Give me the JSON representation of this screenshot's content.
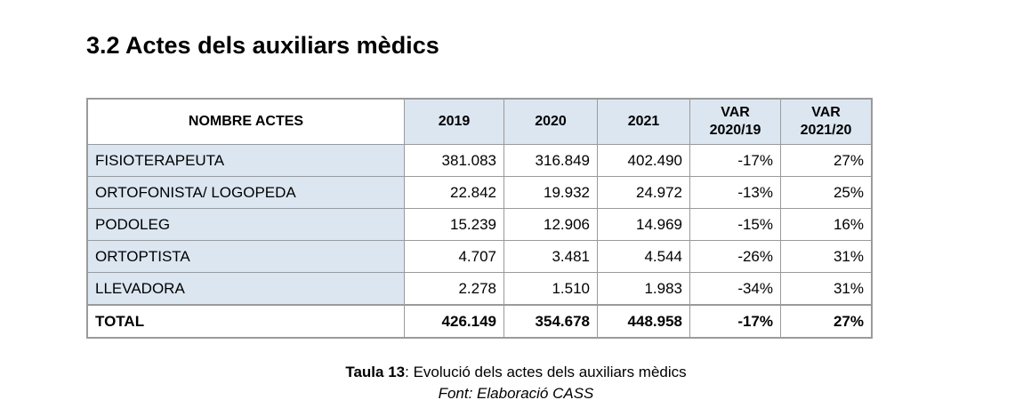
{
  "header": {
    "title": "3.2 Actes dels auxiliars mèdics"
  },
  "table": {
    "columns": [
      "NOMBRE ACTES",
      "2019",
      "2020",
      "2021",
      "VAR\n2020/19",
      "VAR\n2021/20"
    ],
    "rows": [
      [
        "FISIOTERAPEUTA",
        "381.083",
        "316.849",
        "402.490",
        "-17%",
        "27%"
      ],
      [
        "ORTOFONISTA/ LOGOPEDA",
        "22.842",
        "19.932",
        "24.972",
        "-13%",
        "25%"
      ],
      [
        "PODOLEG",
        "15.239",
        "12.906",
        "14.969",
        "-15%",
        "16%"
      ],
      [
        "ORTOPTISTA",
        "4.707",
        "3.481",
        "4.544",
        "-26%",
        "31%"
      ],
      [
        "LLEVADORA",
        "2.278",
        "1.510",
        "1.983",
        "-34%",
        "31%"
      ]
    ],
    "total": [
      "TOTAL",
      "426.149",
      "354.678",
      "448.958",
      "-17%",
      "27%"
    ]
  },
  "caption": {
    "label": "Taula 13",
    "text": ": Evolució dels actes dels auxiliars mèdics",
    "source": "Font: Elaboració CASS"
  }
}
